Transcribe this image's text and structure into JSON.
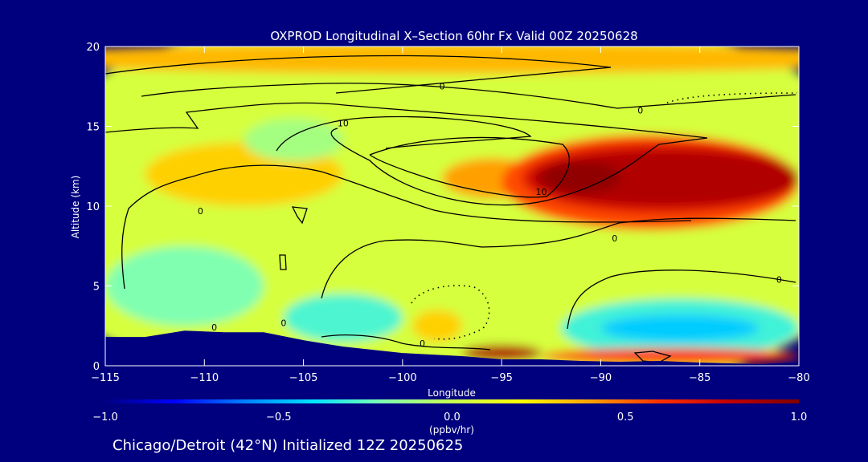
{
  "chart_data": {
    "type": "heatmap",
    "title": "OXPROD Longitudinal X–Section 60hr  Fx Valid 00Z 20250628",
    "xlabel": "Longitude",
    "ylabel": "Altitude (km)",
    "xlim": [
      -115,
      -80
    ],
    "ylim": [
      0,
      20
    ],
    "xticks": [
      -115,
      -110,
      -105,
      -100,
      -95,
      -90,
      -85,
      -80
    ],
    "xtick_labels": [
      "−115",
      "−110",
      "−105",
      "−100",
      "−95",
      "−90",
      "−85",
      "−80"
    ],
    "yticks": [
      0,
      5,
      10,
      15,
      20
    ],
    "ytick_labels": [
      "0",
      "5",
      "10",
      "15",
      "20"
    ],
    "colorbar": {
      "min": -1.0,
      "max": 1.0,
      "ticks": [
        -1.0,
        -0.5,
        0.0,
        0.5,
        1.0
      ],
      "tick_labels": [
        "−1.0",
        "−0.5",
        "0.0",
        "0.5",
        "1.0"
      ],
      "units": "(ppbv/hr)",
      "colors": [
        "#00007f",
        "#0000ff",
        "#0080ff",
        "#00e5ff",
        "#80ffb0",
        "#c8ff50",
        "#ffff00",
        "#ffa000",
        "#ff3000",
        "#c00000",
        "#800000"
      ]
    },
    "regions": [
      {
        "value": 0.05,
        "lon": [
          -115,
          -80
        ],
        "alt": [
          0,
          20
        ]
      },
      {
        "value": 0.35,
        "lon": [
          -115,
          -80
        ],
        "alt": [
          18.5,
          20
        ]
      },
      {
        "value": 0.3,
        "lon": [
          -113,
          -103
        ],
        "alt": [
          10,
          14
        ]
      },
      {
        "value": 0.4,
        "lon": [
          -98,
          -93
        ],
        "alt": [
          10.5,
          13
        ]
      },
      {
        "value": 0.55,
        "lon": [
          -95,
          -80
        ],
        "alt": [
          8.5,
          14.5
        ]
      },
      {
        "value": 0.7,
        "lon": [
          -94,
          -80
        ],
        "alt": [
          9.5,
          14
        ]
      },
      {
        "value": 0.85,
        "lon": [
          -93.5,
          -80
        ],
        "alt": [
          10,
          13.5
        ]
      },
      {
        "value": 0.95,
        "lon": [
          -93,
          -89
        ],
        "alt": [
          10.8,
          12.8
        ]
      },
      {
        "value": -0.1,
        "lon": [
          -108,
          -103
        ],
        "alt": [
          12.8,
          15.5
        ]
      },
      {
        "value": -0.2,
        "lon": [
          -115,
          -107
        ],
        "alt": [
          2.5,
          7.5
        ]
      },
      {
        "value": -0.28,
        "lon": [
          -106,
          -100
        ],
        "alt": [
          1.5,
          4.5
        ]
      },
      {
        "value": -0.3,
        "lon": [
          -92,
          -80
        ],
        "alt": [
          0.5,
          4.2
        ]
      },
      {
        "value": -0.45,
        "lon": [
          -90,
          -82
        ],
        "alt": [
          1.5,
          3.2
        ]
      },
      {
        "value": 0.3,
        "lon": [
          -99.5,
          -97
        ],
        "alt": [
          1.5,
          3.5
        ]
      },
      {
        "value": 0.85,
        "lon": [
          -97,
          -93
        ],
        "alt": [
          0.3,
          1.3
        ]
      },
      {
        "value": 0.6,
        "lon": [
          -93,
          -80
        ],
        "alt": [
          0.1,
          1.1
        ]
      }
    ],
    "contour_levels": [
      -10,
      0,
      10
    ],
    "contour_labels": [
      {
        "text": "0",
        "lon": -98,
        "alt": 17.3
      },
      {
        "text": "10",
        "lon": -103,
        "alt": 15.0
      },
      {
        "text": "0",
        "lon": -88,
        "alt": 15.8
      },
      {
        "text": "10",
        "lon": -93,
        "alt": 10.7
      },
      {
        "text": "0",
        "lon": -89.3,
        "alt": 7.8
      },
      {
        "text": "0",
        "lon": -81,
        "alt": 5.2
      },
      {
        "text": "0",
        "lon": -99,
        "alt": 1.2
      },
      {
        "text": "0",
        "lon": -109.5,
        "alt": 2.2
      },
      {
        "text": "0",
        "lon": -106,
        "alt": 2.5
      },
      {
        "text": "0",
        "lon": -110.2,
        "alt": 9.5
      }
    ],
    "terrain_alt": [
      [
        -115,
        1.8
      ],
      [
        -113,
        1.8
      ],
      [
        -111,
        2.2
      ],
      [
        -109,
        2.1
      ],
      [
        -107,
        2.1
      ],
      [
        -105,
        1.6
      ],
      [
        -103,
        1.2
      ],
      [
        -100,
        0.8
      ],
      [
        -97,
        0.6
      ],
      [
        -95,
        0.4
      ],
      [
        -93,
        0.4
      ],
      [
        -91,
        0.3
      ],
      [
        -89,
        0.25
      ],
      [
        -87,
        0.3
      ],
      [
        -85,
        0.2
      ],
      [
        -82,
        0.1
      ],
      [
        -80,
        0.2
      ]
    ]
  },
  "footer": {
    "location": "Chicago/Detroit (42°N) Initialized 12Z 20250625"
  }
}
